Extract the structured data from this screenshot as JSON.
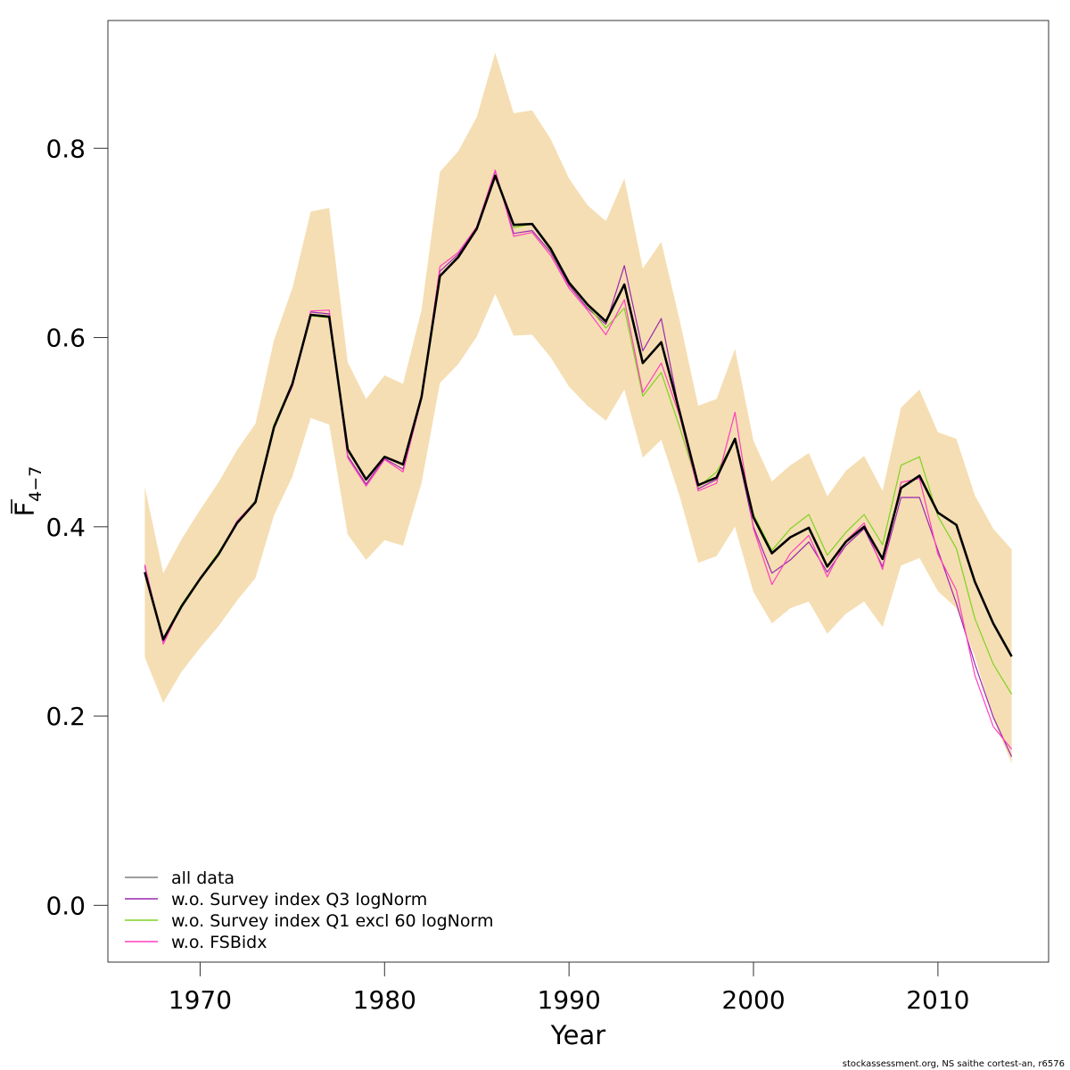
{
  "chart_data": {
    "type": "line",
    "xlabel": "Year",
    "ylabel_main": "F",
    "ylabel_sub": "4−7",
    "xlim": [
      1965,
      2016
    ],
    "ylim": [
      -0.06,
      0.935
    ],
    "xticks": [
      1970,
      1980,
      1990,
      2000,
      2010
    ],
    "yticks": [
      0.0,
      0.2,
      0.4,
      0.6,
      0.8
    ],
    "ytick_labels": [
      "0.0",
      "0.2",
      "0.4",
      "0.6",
      "0.8"
    ],
    "grid": false,
    "legend_position": "bottom-left",
    "x": [
      1967,
      1968,
      1969,
      1970,
      1971,
      1972,
      1973,
      1974,
      1975,
      1976,
      1977,
      1978,
      1979,
      1980,
      1981,
      1982,
      1983,
      1984,
      1985,
      1986,
      1987,
      1988,
      1989,
      1990,
      1991,
      1992,
      1993,
      1994,
      1995,
      1996,
      1997,
      1998,
      1999,
      2000,
      2001,
      2002,
      2003,
      2004,
      2005,
      2006,
      2007,
      2008,
      2009,
      2010,
      2011,
      2012,
      2013,
      2014
    ],
    "band": {
      "color": "#f5deb3",
      "lower": [
        0.262,
        0.214,
        0.247,
        0.272,
        0.295,
        0.322,
        0.346,
        0.412,
        0.453,
        0.515,
        0.508,
        0.392,
        0.365,
        0.386,
        0.38,
        0.446,
        0.552,
        0.572,
        0.601,
        0.646,
        0.602,
        0.603,
        0.579,
        0.548,
        0.528,
        0.512,
        0.545,
        0.473,
        0.492,
        0.432,
        0.362,
        0.369,
        0.4,
        0.331,
        0.298,
        0.314,
        0.321,
        0.287,
        0.308,
        0.321,
        0.294,
        0.359,
        0.367,
        0.332,
        0.314,
        0.263,
        0.197,
        0.15
      ],
      "upper": [
        0.442,
        0.351,
        0.387,
        0.418,
        0.447,
        0.481,
        0.509,
        0.597,
        0.652,
        0.733,
        0.737,
        0.574,
        0.535,
        0.56,
        0.551,
        0.629,
        0.775,
        0.797,
        0.833,
        0.901,
        0.837,
        0.84,
        0.81,
        0.768,
        0.74,
        0.723,
        0.768,
        0.673,
        0.701,
        0.618,
        0.528,
        0.535,
        0.588,
        0.491,
        0.448,
        0.465,
        0.478,
        0.432,
        0.459,
        0.475,
        0.438,
        0.526,
        0.545,
        0.5,
        0.493,
        0.433,
        0.398,
        0.376
      ]
    },
    "series": [
      {
        "name": "w.o. Survey index Q3 logNorm",
        "color": "#9c27b0",
        "width": 1.2,
        "values": [
          0.358,
          0.279,
          0.316,
          0.345,
          0.372,
          0.405,
          0.427,
          0.505,
          0.55,
          0.627,
          0.625,
          0.475,
          0.445,
          0.472,
          0.461,
          0.537,
          0.67,
          0.688,
          0.717,
          0.776,
          0.71,
          0.713,
          0.69,
          0.655,
          0.631,
          0.614,
          0.676,
          0.586,
          0.62,
          0.52,
          0.44,
          0.45,
          0.492,
          0.4,
          0.351,
          0.365,
          0.384,
          0.352,
          0.38,
          0.398,
          0.358,
          0.431,
          0.431,
          0.375,
          0.319,
          0.255,
          0.199,
          0.157
        ]
      },
      {
        "name": "w.o. Survey index Q1 excl 60 logNorm",
        "color": "#7ed321",
        "width": 1.2,
        "values": [
          0.352,
          0.282,
          0.318,
          0.346,
          0.373,
          0.404,
          0.428,
          0.508,
          0.552,
          0.623,
          0.621,
          0.48,
          0.45,
          0.474,
          0.465,
          0.538,
          0.664,
          0.686,
          0.716,
          0.772,
          0.716,
          0.72,
          0.692,
          0.657,
          0.634,
          0.61,
          0.631,
          0.538,
          0.563,
          0.505,
          0.442,
          0.458,
          0.492,
          0.413,
          0.375,
          0.398,
          0.413,
          0.37,
          0.394,
          0.413,
          0.381,
          0.465,
          0.474,
          0.411,
          0.377,
          0.303,
          0.255,
          0.223
        ]
      },
      {
        "name": "w.o. FSBidx",
        "color": "#ff3fbf",
        "width": 1.2,
        "values": [
          0.36,
          0.276,
          0.317,
          0.344,
          0.371,
          0.406,
          0.427,
          0.506,
          0.548,
          0.628,
          0.629,
          0.473,
          0.443,
          0.471,
          0.458,
          0.535,
          0.675,
          0.69,
          0.717,
          0.777,
          0.707,
          0.711,
          0.687,
          0.652,
          0.629,
          0.603,
          0.64,
          0.542,
          0.573,
          0.517,
          0.438,
          0.446,
          0.521,
          0.398,
          0.339,
          0.372,
          0.391,
          0.347,
          0.385,
          0.404,
          0.355,
          0.447,
          0.451,
          0.371,
          0.333,
          0.243,
          0.189,
          0.165
        ]
      },
      {
        "name": "all data",
        "color": "#000000",
        "width": 2.6,
        "values": [
          0.352,
          0.281,
          0.316,
          0.345,
          0.371,
          0.404,
          0.426,
          0.505,
          0.551,
          0.624,
          0.622,
          0.482,
          0.45,
          0.474,
          0.466,
          0.537,
          0.665,
          0.685,
          0.715,
          0.771,
          0.719,
          0.72,
          0.694,
          0.658,
          0.635,
          0.617,
          0.656,
          0.573,
          0.595,
          0.521,
          0.444,
          0.452,
          0.493,
          0.41,
          0.372,
          0.389,
          0.399,
          0.358,
          0.384,
          0.4,
          0.366,
          0.441,
          0.454,
          0.415,
          0.402,
          0.342,
          0.298,
          0.263
        ]
      }
    ],
    "legend": [
      {
        "label": "all data",
        "color": "#7f7f7f"
      },
      {
        "label": "w.o. Survey index Q3 logNorm",
        "color": "#9c27b0"
      },
      {
        "label": "w.o. Survey index Q1 excl 60 logNorm",
        "color": "#7ed321"
      },
      {
        "label": "w.o. FSBidx",
        "color": "#ff3fbf"
      }
    ]
  },
  "footer": "stockassessment.org, NS saithe cortest-an, r6576"
}
